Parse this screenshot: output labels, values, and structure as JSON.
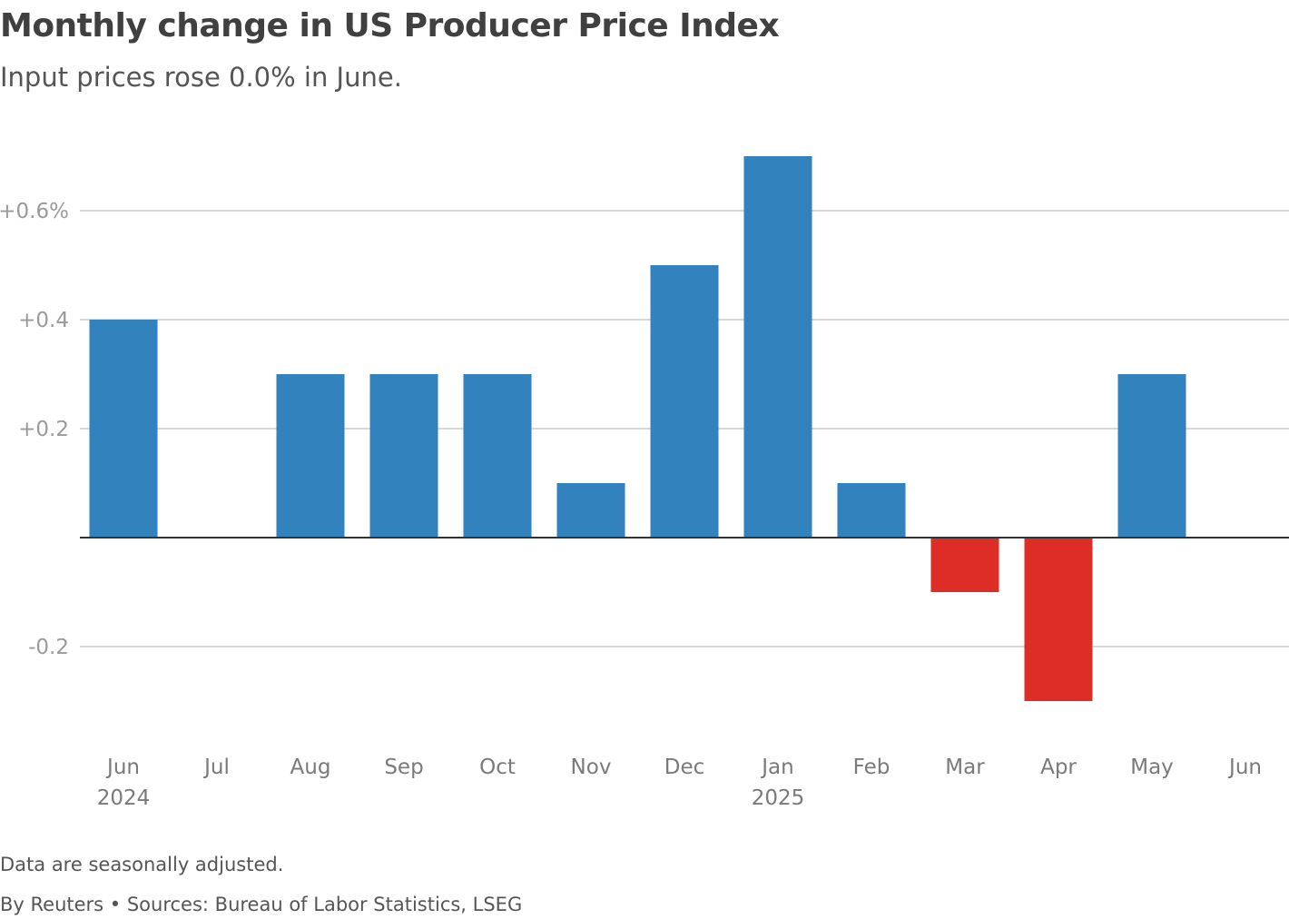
{
  "title": "Monthly change in US Producer Price Index",
  "subtitle": "Input prices rose 0.0% in June.",
  "footnote": "Data are seasonally adjusted.",
  "credit": "By Reuters • Sources: Bureau of Labor Statistics, LSEG",
  "colors": {
    "positive": "#3182bd",
    "negative": "#de2d26",
    "gridline": "#cccccc",
    "baseline": "#333333"
  },
  "chart_data": {
    "type": "bar",
    "title": "Monthly change in US Producer Price Index",
    "xlabel": "",
    "ylabel": "",
    "categories": [
      "Jun",
      "Jul",
      "Aug",
      "Sep",
      "Oct",
      "Nov",
      "Dec",
      "Jan",
      "Feb",
      "Mar",
      "Apr",
      "May",
      "Jun"
    ],
    "year_labels": [
      "2024",
      "",
      "",
      "",
      "",
      "",
      "",
      "2025",
      "",
      "",
      "",
      "",
      ""
    ],
    "values": [
      0.4,
      0.0,
      0.3,
      0.3,
      0.3,
      0.1,
      0.5,
      0.7,
      0.1,
      -0.1,
      -0.3,
      0.3,
      0.0
    ],
    "ylim": [
      -0.3,
      0.7
    ],
    "yticks": [
      {
        "value": 0.6,
        "label": "+0.6%"
      },
      {
        "value": 0.4,
        "label": "+0.4"
      },
      {
        "value": 0.2,
        "label": "+0.2"
      },
      {
        "value": -0.2,
        "label": "-0.2"
      }
    ],
    "grid": true
  }
}
